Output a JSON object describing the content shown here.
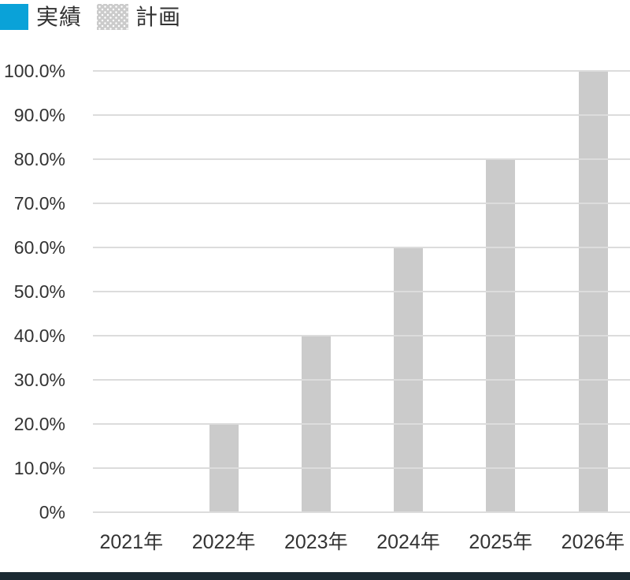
{
  "legend": {
    "items": [
      {
        "label": "実績",
        "swatch": "solid",
        "color": "#0aa2d8"
      },
      {
        "label": "計画",
        "swatch": "dots",
        "color": "#cbcbcb"
      }
    ]
  },
  "chart_data": {
    "type": "bar",
    "categories": [
      "2021年",
      "2022年",
      "2023年",
      "2024年",
      "2025年",
      "2026年"
    ],
    "series": [
      {
        "name": "実績",
        "color": "#0aa2d8",
        "values": [
          0,
          0,
          0,
          0,
          0,
          0
        ]
      },
      {
        "name": "計画",
        "color": "#cbcbcb",
        "values": [
          0,
          20,
          40,
          60,
          80,
          100
        ]
      }
    ],
    "title": "",
    "xlabel": "",
    "ylabel": "",
    "ylim": [
      0,
      100
    ],
    "yticks": [
      {
        "value": 0,
        "label": "0%"
      },
      {
        "value": 10,
        "label": "10.0%"
      },
      {
        "value": 20,
        "label": "20.0%"
      },
      {
        "value": 30,
        "label": "30.0%"
      },
      {
        "value": 40,
        "label": "40.0%"
      },
      {
        "value": 50,
        "label": "50.0%"
      },
      {
        "value": 60,
        "label": "60.0%"
      },
      {
        "value": 70,
        "label": "70.0%"
      },
      {
        "value": 80,
        "label": "80.0%"
      },
      {
        "value": 90,
        "label": "90.0%"
      },
      {
        "value": 100,
        "label": "100.0%"
      }
    ],
    "grid": true,
    "legend_position": "top-left"
  },
  "colors": {
    "text": "#333333",
    "gridline": "#dcdcdc",
    "bar_plan": "#cbcbcb",
    "accent_blue": "#0aa2d8",
    "footer_bar": "#1b2a33",
    "background": "#ffffff"
  }
}
